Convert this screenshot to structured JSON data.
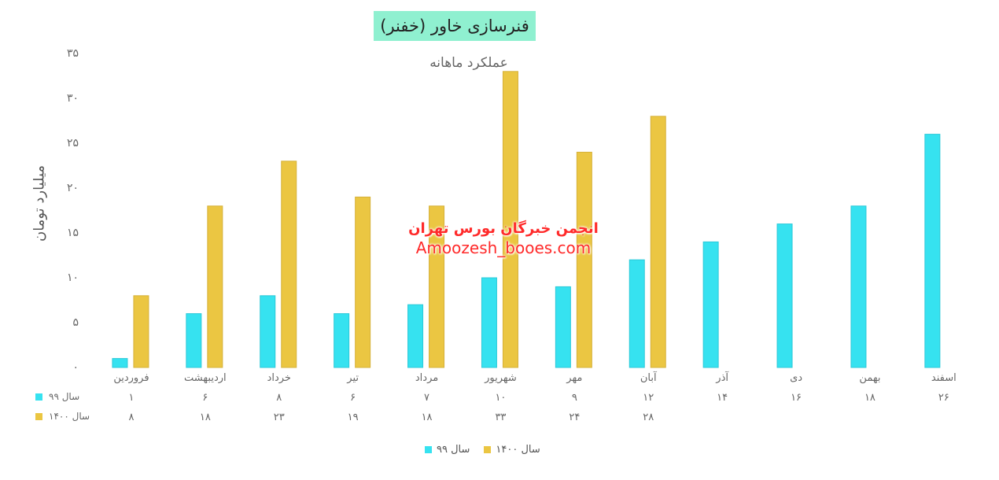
{
  "title": "فنرسازی خاور (خفنر)",
  "subtitle": "عملکرد ماهانه",
  "watermark": {
    "line1": "انجمن خبرگان بورس تهران",
    "line2": "Amoozesh_booes.com"
  },
  "colors": {
    "series1": "#36e2f0",
    "series2": "#ebc642",
    "title_bg": "#8ff0d0"
  },
  "chart_data": {
    "type": "bar",
    "title": "فنرسازی خاور (خفنر)",
    "subtitle": "عملکرد ماهانه",
    "ylabel": "میلیارد تومان",
    "xlabel": "",
    "ylim": [
      0,
      35
    ],
    "yticks": [
      "۰",
      "۵",
      "۱۰",
      "۱۵",
      "۲۰",
      "۲۵",
      "۳۰",
      "۳۵"
    ],
    "categories": [
      "فروردین",
      "اردیبهشت",
      "خرداد",
      "تیر",
      "مرداد",
      "شهریور",
      "مهر",
      "آبان",
      "آذر",
      "دی",
      "بهمن",
      "اسفند"
    ],
    "series": [
      {
        "name": "سال ۹۹",
        "color": "#36e2f0",
        "values": [
          1,
          6,
          8,
          6,
          7,
          10,
          9,
          12,
          14,
          16,
          18,
          26
        ],
        "labels": [
          "۱",
          "۶",
          "۸",
          "۶",
          "۷",
          "۱۰",
          "۹",
          "۱۲",
          "۱۴",
          "۱۶",
          "۱۸",
          "۲۶"
        ]
      },
      {
        "name": "سال ۱۴۰۰",
        "color": "#ebc642",
        "values": [
          8,
          18,
          23,
          19,
          18,
          33,
          24,
          28,
          null,
          null,
          null,
          null
        ],
        "labels": [
          "۸",
          "۱۸",
          "۲۳",
          "۱۹",
          "۱۸",
          "۳۳",
          "۲۴",
          "۲۸",
          "",
          "",
          "",
          ""
        ]
      }
    ],
    "grid": false,
    "legend": "bottom-center",
    "data_table": true
  }
}
